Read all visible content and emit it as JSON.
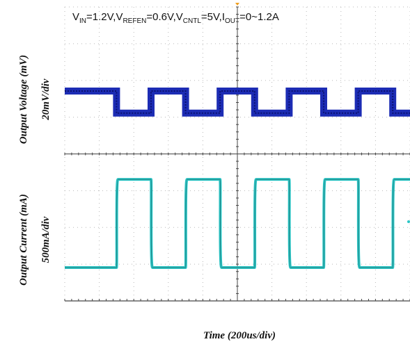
{
  "chart_data": {
    "type": "line",
    "title": {
      "V_label": "V",
      "V_sub": "IN",
      "V_val": "=1.2V,",
      "Vref_label": "V",
      "Vref_sub": "REFEN",
      "Vref_val": "=0.6V,",
      "Vcntl_label": "V",
      "Vcntl_sub": "CNTL",
      "Vcntl_val": "=5V,",
      "Iout_label": "I",
      "Iout_sub": "OUT",
      "Iout_val": "=0~1.2A"
    },
    "xlabel": "Time (200us/div)",
    "ylabel_top": "Output Voltage (mV)",
    "ylabel_top_scale": "20mV/div",
    "ylabel_bottom": "Output Current (mA)",
    "ylabel_bottom_scale": "500mA/div",
    "x_divisions": 10,
    "y_divisions": 8,
    "grid": true,
    "colors": {
      "voltage": "#1c2cb4",
      "voltage_dark": "#0a1170",
      "current": "#2cc6c6",
      "current_dark": "#1f7e7e",
      "grid": "#b8b8b8",
      "axis": "#444444",
      "trigger": "#f0a020"
    },
    "x_range_div": [
      0,
      10
    ],
    "transition_points_div": [
      0.5,
      1.5,
      2.5,
      3.5,
      4.5,
      5.5,
      6.5,
      7.5,
      8.5,
      9.5
    ],
    "series": [
      {
        "name": "Output Voltage",
        "unit": "mV",
        "scale_per_div": 20,
        "x_div": [
          0,
          0.5,
          1.5,
          2.5,
          3.5,
          4.5,
          5.5,
          6.5,
          7.5,
          8.5,
          9.5,
          10
        ],
        "level_mV": [
          0,
          0,
          -12,
          0,
          -12,
          0,
          -12,
          0,
          -12,
          0,
          -12,
          -12
        ],
        "note_levels": "0 at I=0 A, -12 mV at I=1.2 A"
      },
      {
        "name": "Output Current",
        "unit": "mA",
        "scale_per_div": 500,
        "x_div": [
          0,
          0.5,
          1.5,
          2.5,
          3.5,
          4.5,
          5.5,
          6.5,
          7.5,
          8.5,
          9.5,
          10
        ],
        "level_mA": [
          0,
          0,
          1200,
          0,
          1200,
          0,
          1200,
          0,
          1200,
          0,
          1200,
          1200
        ]
      }
    ]
  }
}
